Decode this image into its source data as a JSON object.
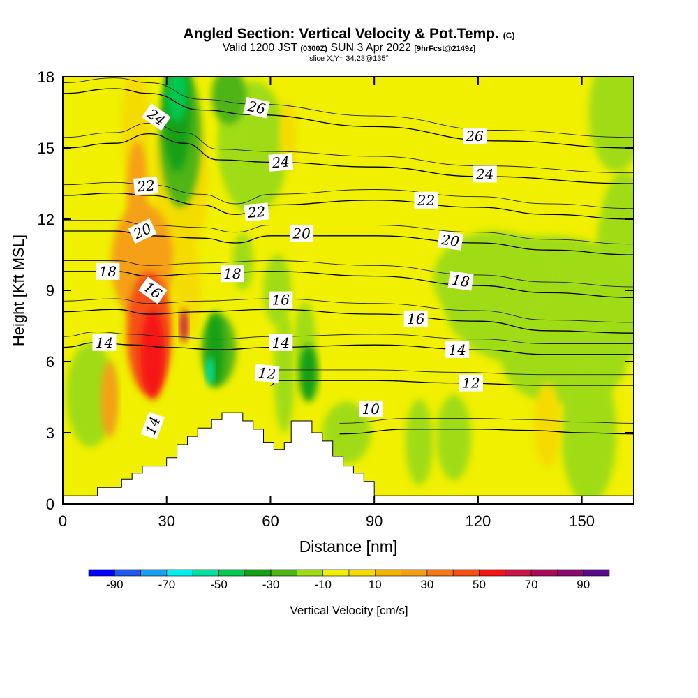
{
  "header": {
    "title": "Angled Section: Vertical Velocity & Pot.Temp.",
    "title_note": "(C)",
    "valid_prefix": "Valid 1200 JST",
    "utc_note": "(0300Z)",
    "valid_date": "SUN 3 Apr 2022",
    "forecast_note": "[9hrFcst@2149z]",
    "slice": "slice X,Y= 34,23@135°"
  },
  "chart_data": {
    "type": "heatmap",
    "xlabel": "Distance [nm]",
    "ylabel": "Height [Kft MSL]",
    "xlim": [
      0,
      165
    ],
    "ylim": [
      0,
      18
    ],
    "xticks": [
      0,
      30,
      60,
      90,
      120,
      150
    ],
    "yticks": [
      0,
      3,
      6,
      9,
      12,
      15,
      18
    ],
    "colorbar": {
      "label": "Vertical Velocity [cm/s]",
      "tick_labels": [
        "-90",
        "-70",
        "-50",
        "-30",
        "-10",
        "10",
        "30",
        "50",
        "70",
        "90"
      ],
      "colors": [
        "#0000ff",
        "#1e5af0",
        "#14a0f0",
        "#00f0f0",
        "#00e1a0",
        "#00c850",
        "#14a014",
        "#50b414",
        "#a0dc14",
        "#f0f000",
        "#f5dc00",
        "#f5b400",
        "#f5a014",
        "#f57814",
        "#f55014",
        "#f51414",
        "#c81446",
        "#aa0a5a",
        "#8c0a6e",
        "#5a0a8c"
      ]
    },
    "terrain_profile": [
      [
        0,
        0.35
      ],
      [
        10,
        0.35
      ],
      [
        10,
        0.7
      ],
      [
        17,
        0.7
      ],
      [
        17,
        1.05
      ],
      [
        20,
        1.05
      ],
      [
        20,
        1.3
      ],
      [
        23,
        1.3
      ],
      [
        23,
        1.6
      ],
      [
        30,
        1.6
      ],
      [
        30,
        1.95
      ],
      [
        33,
        1.95
      ],
      [
        33,
        2.5
      ],
      [
        36,
        2.5
      ],
      [
        36,
        2.85
      ],
      [
        39,
        2.85
      ],
      [
        39,
        3.2
      ],
      [
        43,
        3.2
      ],
      [
        43,
        3.55
      ],
      [
        46,
        3.55
      ],
      [
        46,
        3.85
      ],
      [
        52,
        3.85
      ],
      [
        52,
        3.5
      ],
      [
        55,
        3.5
      ],
      [
        55,
        3.15
      ],
      [
        58,
        3.15
      ],
      [
        58,
        2.6
      ],
      [
        61,
        2.6
      ],
      [
        61,
        2.3
      ],
      [
        64,
        2.3
      ],
      [
        64,
        2.6
      ],
      [
        66,
        2.6
      ],
      [
        66,
        3.5
      ],
      [
        72,
        3.5
      ],
      [
        72,
        3.0
      ],
      [
        75,
        3.0
      ],
      [
        75,
        2.65
      ],
      [
        78,
        2.65
      ],
      [
        78,
        2.0
      ],
      [
        81,
        2.0
      ],
      [
        81,
        1.6
      ],
      [
        84,
        1.6
      ],
      [
        84,
        1.3
      ],
      [
        87,
        1.3
      ],
      [
        87,
        0.95
      ],
      [
        90,
        0.95
      ],
      [
        90,
        0.35
      ],
      [
        165,
        0.35
      ],
      [
        165,
        0
      ],
      [
        0,
        0
      ]
    ],
    "theta_isolines": [
      {
        "level": "10",
        "points": [
          [
            80,
            2.95
          ],
          [
            100,
            3.15
          ],
          [
            120,
            3.15
          ],
          [
            135,
            3.1
          ],
          [
            150,
            3.0
          ],
          [
            165,
            2.95
          ]
        ]
      },
      {
        "level": "12",
        "points": [
          [
            60,
            5.0
          ],
          [
            62,
            5.2
          ],
          [
            90,
            5.2
          ],
          [
            112,
            5.1
          ],
          [
            140,
            5.0
          ],
          [
            165,
            5.0
          ]
        ]
      },
      {
        "level": "14",
        "points": [
          [
            0,
            6.6
          ],
          [
            10,
            6.8
          ],
          [
            20,
            6.7
          ],
          [
            30,
            6.6
          ],
          [
            45,
            6.5
          ],
          [
            60,
            6.6
          ],
          [
            90,
            6.7
          ],
          [
            120,
            6.5
          ],
          [
            140,
            6.3
          ],
          [
            165,
            6.3
          ]
        ]
      },
      {
        "level": "16",
        "points": [
          [
            0,
            8.1
          ],
          [
            15,
            8.2
          ],
          [
            25,
            8.0
          ],
          [
            40,
            8.1
          ],
          [
            60,
            8.2
          ],
          [
            90,
            8.0
          ],
          [
            120,
            7.7
          ],
          [
            140,
            7.3
          ],
          [
            165,
            7.2
          ]
        ]
      },
      {
        "level": "18",
        "points": [
          [
            0,
            9.8
          ],
          [
            15,
            9.8
          ],
          [
            25,
            9.6
          ],
          [
            40,
            9.7
          ],
          [
            60,
            9.8
          ],
          [
            90,
            9.6
          ],
          [
            120,
            9.2
          ],
          [
            140,
            8.9
          ],
          [
            165,
            8.7
          ]
        ]
      },
      {
        "level": "20",
        "points": [
          [
            0,
            11.5
          ],
          [
            15,
            11.5
          ],
          [
            25,
            11.3
          ],
          [
            40,
            11.2
          ],
          [
            50,
            11.0
          ],
          [
            60,
            11.3
          ],
          [
            90,
            11.3
          ],
          [
            120,
            11.0
          ],
          [
            140,
            10.7
          ],
          [
            165,
            10.5
          ]
        ]
      },
      {
        "level": "22",
        "points": [
          [
            0,
            13.0
          ],
          [
            15,
            13.1
          ],
          [
            25,
            13.0
          ],
          [
            40,
            12.6
          ],
          [
            50,
            12.2
          ],
          [
            60,
            12.6
          ],
          [
            90,
            12.8
          ],
          [
            120,
            12.5
          ],
          [
            140,
            12.2
          ],
          [
            165,
            12.0
          ]
        ]
      },
      {
        "level": "24",
        "points": [
          [
            0,
            15.0
          ],
          [
            15,
            15.2
          ],
          [
            25,
            15.6
          ],
          [
            35,
            15.2
          ],
          [
            45,
            14.5
          ],
          [
            60,
            14.4
          ],
          [
            90,
            14.2
          ],
          [
            120,
            13.8
          ],
          [
            165,
            13.5
          ]
        ]
      },
      {
        "level": "26",
        "points": [
          [
            0,
            17.3
          ],
          [
            15,
            17.5
          ],
          [
            25,
            17.3
          ],
          [
            40,
            16.6
          ],
          [
            55,
            16.4
          ],
          [
            90,
            15.9
          ],
          [
            125,
            15.3
          ],
          [
            165,
            15.0
          ]
        ]
      }
    ],
    "isoline_labels": [
      {
        "text": "24",
        "x": 27,
        "y": 16.3,
        "angle": 35
      },
      {
        "text": "26",
        "x": 56,
        "y": 16.7,
        "angle": 12
      },
      {
        "text": "26",
        "x": 119,
        "y": 15.5,
        "angle": 0
      },
      {
        "text": "24",
        "x": 63,
        "y": 14.4,
        "angle": -5
      },
      {
        "text": "24",
        "x": 122,
        "y": 13.9,
        "angle": 0
      },
      {
        "text": "22",
        "x": 24,
        "y": 13.4,
        "angle": -5
      },
      {
        "text": "22",
        "x": 56,
        "y": 12.3,
        "angle": -5
      },
      {
        "text": "22",
        "x": 105,
        "y": 12.8,
        "angle": 0
      },
      {
        "text": "20",
        "x": 23,
        "y": 11.5,
        "angle": -25
      },
      {
        "text": "20",
        "x": 69,
        "y": 11.4,
        "angle": 0
      },
      {
        "text": "20",
        "x": 112,
        "y": 11.1,
        "angle": 8
      },
      {
        "text": "18",
        "x": 13,
        "y": 9.8,
        "angle": 0
      },
      {
        "text": "18",
        "x": 49,
        "y": 9.7,
        "angle": 0
      },
      {
        "text": "18",
        "x": 115,
        "y": 9.4,
        "angle": 8
      },
      {
        "text": "16",
        "x": 26,
        "y": 9.0,
        "angle": 35
      },
      {
        "text": "16",
        "x": 63,
        "y": 8.6,
        "angle": 0
      },
      {
        "text": "16",
        "x": 102,
        "y": 7.8,
        "angle": 0
      },
      {
        "text": "14",
        "x": 12,
        "y": 6.8,
        "angle": 0
      },
      {
        "text": "14",
        "x": 63,
        "y": 6.8,
        "angle": 0
      },
      {
        "text": "14",
        "x": 114,
        "y": 6.5,
        "angle": 0
      },
      {
        "text": "14",
        "x": 26,
        "y": 3.3,
        "angle": -70
      },
      {
        "text": "12",
        "x": 59,
        "y": 5.5,
        "angle": 5
      },
      {
        "text": "12",
        "x": 118,
        "y": 5.1,
        "angle": 0
      },
      {
        "text": "10",
        "x": 89,
        "y": 4.0,
        "angle": 0
      }
    ]
  }
}
